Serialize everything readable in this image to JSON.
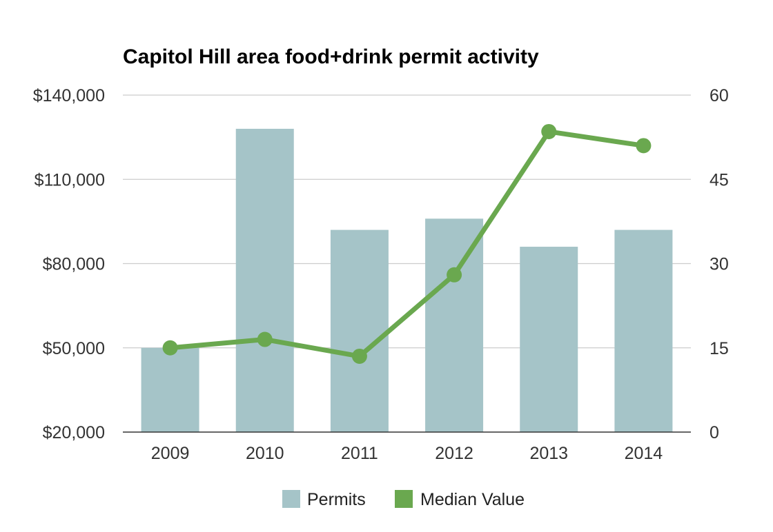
{
  "chart_data": {
    "type": "bar",
    "title": "Capitol Hill area food+drink permit activity",
    "categories": [
      "2009",
      "2010",
      "2011",
      "2012",
      "2013",
      "2014"
    ],
    "series": [
      {
        "name": "Permits",
        "type": "bar",
        "axis": "right",
        "color": "#a5c4c8",
        "values": [
          15,
          54,
          36,
          38,
          33,
          36
        ]
      },
      {
        "name": "Median Value",
        "type": "line",
        "axis": "left",
        "color": "#6aa84f",
        "values": [
          50000,
          53000,
          47000,
          76000,
          127000,
          122000
        ]
      }
    ],
    "y_left": {
      "range": [
        20000,
        140000
      ],
      "ticks": [
        "$20,000",
        "$50,000",
        "$80,000",
        "$110,000",
        "$140,000"
      ]
    },
    "y_right": {
      "range": [
        0,
        60
      ],
      "ticks": [
        "0",
        "15",
        "30",
        "45",
        "60"
      ]
    },
    "grid": true,
    "legend": {
      "position": "bottom",
      "items": [
        "Permits",
        "Median Value"
      ]
    }
  }
}
